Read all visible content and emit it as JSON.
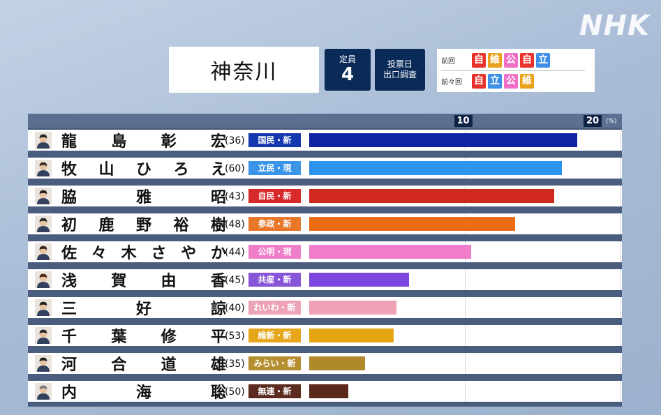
{
  "brand": "NHK",
  "header": {
    "prefecture": "神奈川",
    "seats_label": "定員",
    "seats_value": "4",
    "exit_poll_line1": "投票日",
    "exit_poll_line2": "出口調査",
    "previous_label": "前回",
    "previous_parties": [
      {
        "label": "自",
        "color": "#e8322b"
      },
      {
        "label": "維",
        "color": "#e9a11b"
      },
      {
        "label": "公",
        "color": "#f06fc6"
      },
      {
        "label": "自",
        "color": "#e8322b"
      },
      {
        "label": "立",
        "color": "#3d8fe8"
      }
    ],
    "before_previous_label": "前々回",
    "before_previous_parties": [
      {
        "label": "自",
        "color": "#e8322b"
      },
      {
        "label": "立",
        "color": "#3d8fe8"
      },
      {
        "label": "公",
        "color": "#f06fc6"
      },
      {
        "label": "維",
        "color": "#e9a11b"
      }
    ]
  },
  "chart_data": {
    "type": "bar",
    "orientation": "horizontal",
    "x_ticks": [
      "10",
      "20"
    ],
    "x_unit": "(%)",
    "xlim": [
      0,
      20
    ],
    "grid": true,
    "categories": [
      "龍島彰宏",
      "牧山ひろえ",
      "脇雅昭",
      "初鹿野裕樹",
      "佐々木さやか",
      "浅賀由香",
      "三好諒",
      "千葉修平",
      "河合道雄",
      "内海聡"
    ],
    "candidates": [
      {
        "name_chars": [
          "龍",
          "島",
          "彰",
          "宏"
        ],
        "age": "(36)",
        "party": "国民・新",
        "party_color": "#1538b0",
        "bar_color": "#0f23a3",
        "value": 17.2,
        "hair": "#222222"
      },
      {
        "name_chars": [
          "牧",
          "山",
          "ひ",
          "ろ",
          "え"
        ],
        "age": "(60)",
        "party": "立民・現",
        "party_color": "#3a95e8",
        "bar_color": "#2c93ee",
        "value": 16.2,
        "hair": "#3a2a20"
      },
      {
        "name_chars": [
          "脇",
          "雅",
          "昭"
        ],
        "age": "(43)",
        "party": "自民・新",
        "party_color": "#d7292a",
        "bar_color": "#d0271f",
        "value": 15.7,
        "hair": "#1e1e1e"
      },
      {
        "name_chars": [
          "初",
          "鹿",
          "野",
          "裕",
          "樹"
        ],
        "age": "(48)",
        "party": "参政・新",
        "party_color": "#e9772a",
        "bar_color": "#ea6c12",
        "value": 13.2,
        "hair": "#2a2a2a"
      },
      {
        "name_chars": [
          "佐",
          "々",
          "木",
          "さ",
          "や",
          "か"
        ],
        "age": "(44)",
        "party": "公明・現",
        "party_color": "#ee7ec7",
        "bar_color": "#f07dcc",
        "value": 10.4,
        "hair": "#3a2618"
      },
      {
        "name_chars": [
          "浅",
          "賀",
          "由",
          "香"
        ],
        "age": "(45)",
        "party": "共産・新",
        "party_color": "#8755d8",
        "bar_color": "#7c46de",
        "value": 6.4,
        "hair": "#4a2a18"
      },
      {
        "name_chars": [
          "三",
          "好",
          "諒"
        ],
        "age": "(40)",
        "party": "れいわ・新",
        "party_color": "#eca3b8",
        "bar_color": "#efa1b5",
        "value": 5.6,
        "hair": "#222222"
      },
      {
        "name_chars": [
          "千",
          "葉",
          "修",
          "平"
        ],
        "age": "(53)",
        "party": "維新・新",
        "party_color": "#e6a61b",
        "bar_color": "#e6a614",
        "value": 5.4,
        "hair": "#262626"
      },
      {
        "name_chars": [
          "河",
          "合",
          "道",
          "雄"
        ],
        "age": "(35)",
        "party": "みらい・新",
        "party_color": "#b58f2f",
        "bar_color": "#b0892a",
        "value": 3.6,
        "hair": "#202020"
      },
      {
        "name_chars": [
          "内",
          "海",
          "聡"
        ],
        "age": "(50)",
        "party": "無連・新",
        "party_color": "#5a2b1e",
        "bar_color": "#5b2a1d",
        "value": 2.5,
        "hair": "#7a7a7a"
      }
    ]
  }
}
